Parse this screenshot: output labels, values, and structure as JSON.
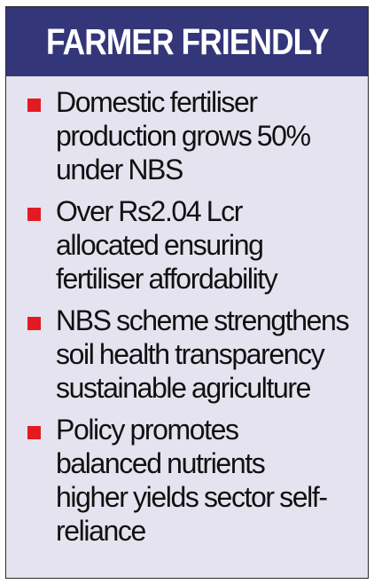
{
  "header": {
    "title": "FARMER FRIENDLY",
    "background_color": "#34367a",
    "text_color": "#ffffff"
  },
  "panel": {
    "background_color": "#e4e3ef"
  },
  "bullets": {
    "color": "#e21b23",
    "items": [
      {
        "lines": [
          "Domestic fertiliser",
          "production grows 50%",
          "under NBS"
        ]
      },
      {
        "lines": [
          "Over Rs2.04 Lcr",
          "allocated ensuring",
          "fertiliser affordability"
        ]
      },
      {
        "lines": [
          "NBS scheme strengthens",
          "soil health transparency",
          "sustainable agriculture"
        ]
      },
      {
        "lines": [
          "Policy promotes",
          "balanced nutrients",
          "higher yields sector self-",
          "reliance"
        ]
      }
    ]
  }
}
